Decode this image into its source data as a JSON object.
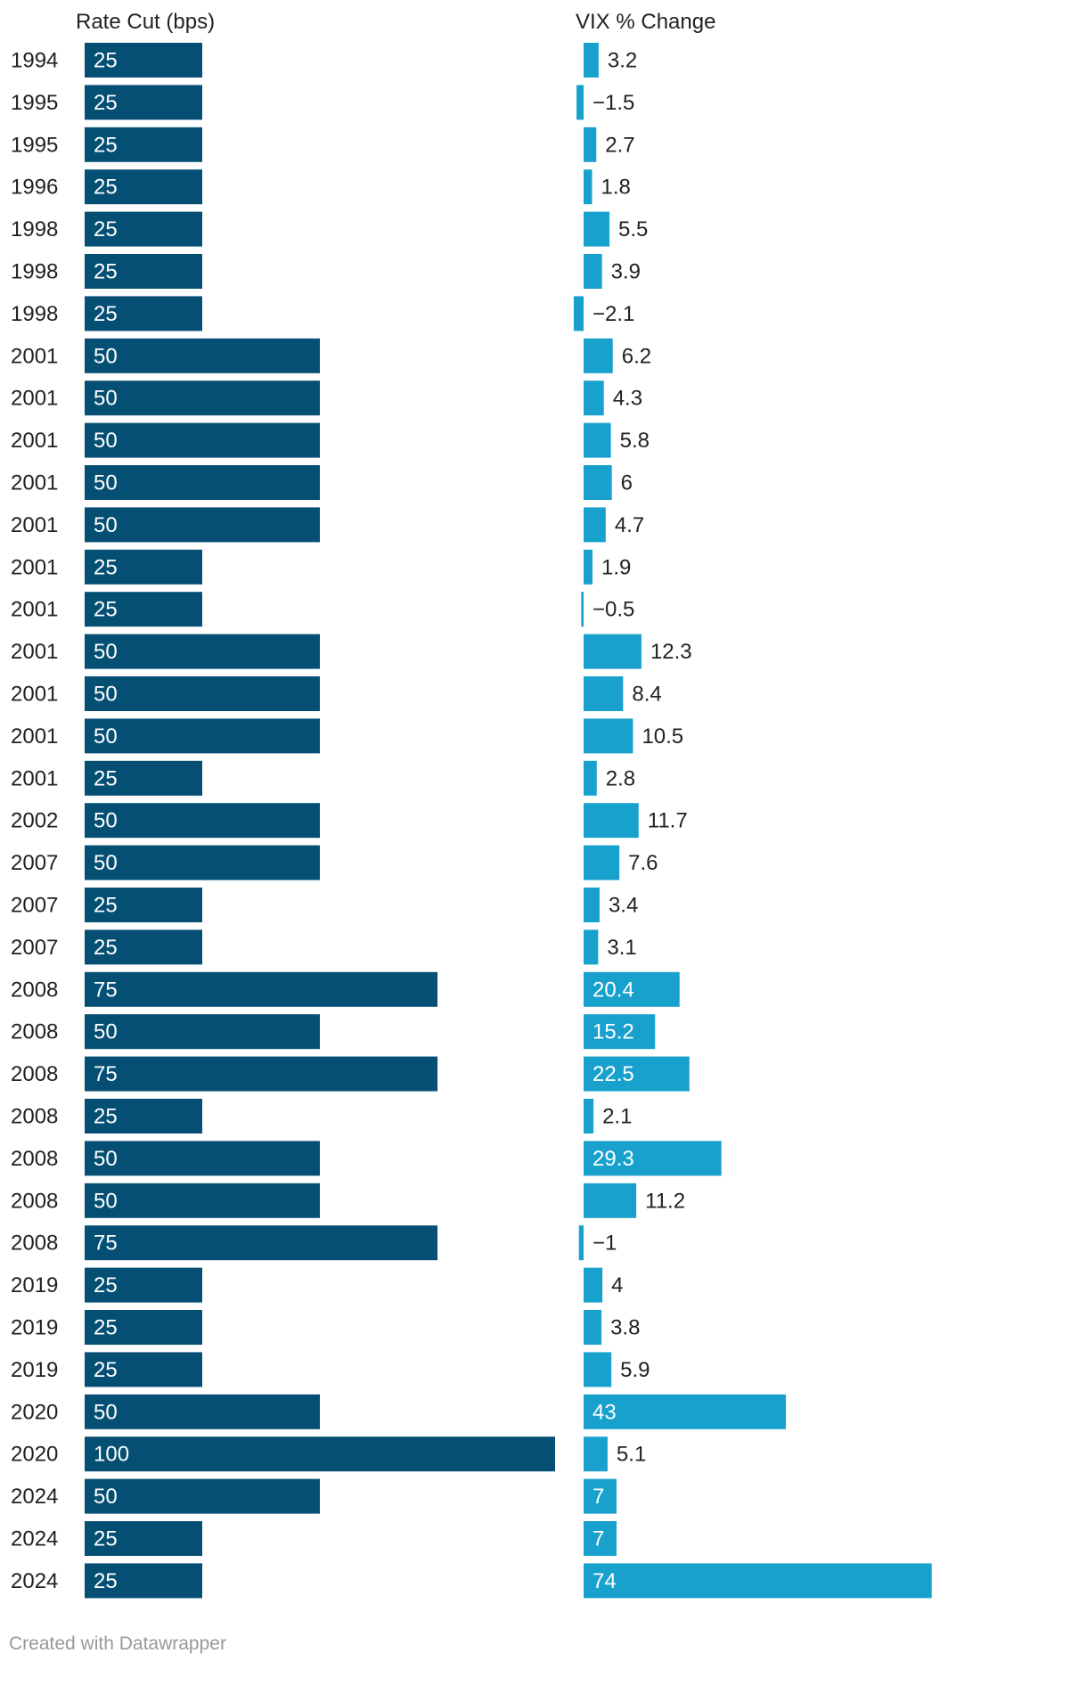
{
  "colors": {
    "rate_bar": "#054f74",
    "vix_bar": "#19a1cd",
    "text": "#222222",
    "text_inverse": "#ffffff",
    "footer": "#999999"
  },
  "footer": "Created with Datawrapper",
  "chart_data": {
    "type": "bar",
    "orientation": "horizontal",
    "categories": [
      "1994",
      "1995",
      "1995",
      "1996",
      "1998",
      "1998",
      "1998",
      "2001",
      "2001",
      "2001",
      "2001",
      "2001",
      "2001",
      "2001",
      "2001",
      "2001",
      "2001",
      "2001",
      "2002",
      "2007",
      "2007",
      "2007",
      "2008",
      "2008",
      "2008",
      "2008",
      "2008",
      "2008",
      "2008",
      "2019",
      "2019",
      "2019",
      "2020",
      "2020",
      "2024",
      "2024",
      "2024"
    ],
    "series": [
      {
        "name": "Rate Cut (bps)",
        "values": [
          25,
          25,
          25,
          25,
          25,
          25,
          25,
          50,
          50,
          50,
          50,
          50,
          25,
          25,
          50,
          50,
          50,
          25,
          50,
          50,
          25,
          25,
          75,
          50,
          75,
          25,
          50,
          50,
          75,
          25,
          25,
          25,
          50,
          100,
          50,
          25,
          25
        ],
        "xlim": [
          0,
          100
        ]
      },
      {
        "name": "VIX % Change",
        "values": [
          3.2,
          -1.5,
          2.7,
          1.8,
          5.5,
          3.9,
          -2.1,
          6.2,
          4.3,
          5.8,
          6,
          4.7,
          1.9,
          -0.5,
          12.3,
          8.4,
          10.5,
          2.8,
          11.7,
          7.6,
          3.4,
          3.1,
          20.4,
          15.2,
          22.5,
          2.1,
          29.3,
          11.2,
          -1,
          4,
          3.8,
          5.9,
          43,
          5.1,
          7,
          7,
          74
        ],
        "labels": [
          "3.2",
          "−1.5",
          "2.7",
          "1.8",
          "5.5",
          "3.9",
          "−2.1",
          "6.2",
          "4.3",
          "5.8",
          "6",
          "4.7",
          "1.9",
          "−0.5",
          "12.3",
          "8.4",
          "10.5",
          "2.8",
          "11.7",
          "7.6",
          "3.4",
          "3.1",
          "20.4",
          "15.2",
          "22.5",
          "2.1",
          "29.3",
          "11.2",
          "−1",
          "4",
          "3.8",
          "5.9",
          "43",
          "5.1",
          "7",
          "7",
          "74"
        ],
        "xlim": [
          -2.1,
          74
        ]
      }
    ]
  }
}
